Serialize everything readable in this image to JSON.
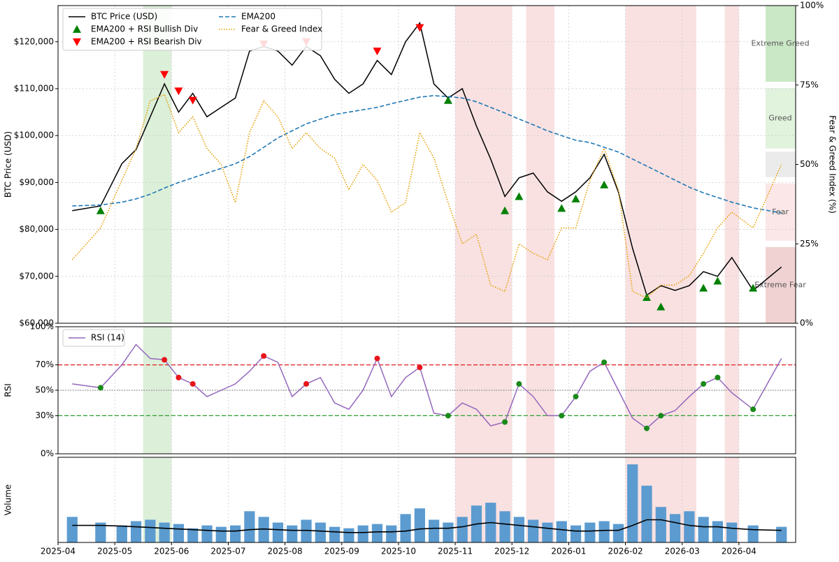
{
  "chart_data": [
    {
      "type": "line",
      "ylabel": "BTC Price (USD)",
      "y2label": "Fear & Greed Index (%)",
      "grid": true,
      "legend": "upper left",
      "ylim": [
        60000,
        127700
      ],
      "yticks": [
        {
          "value": 60000,
          "label": "$60,000"
        },
        {
          "value": 70000,
          "label": "$70,000"
        },
        {
          "value": 80000,
          "label": "$80,000"
        },
        {
          "value": 90000,
          "label": "$90,000"
        },
        {
          "value": 100000,
          "label": "$100,000"
        },
        {
          "value": 110000,
          "label": "$110,000"
        },
        {
          "value": 120000,
          "label": "$120,000"
        }
      ],
      "y2lim": [
        0,
        100
      ],
      "y2ticks": [
        {
          "value": 0,
          "label": "0%"
        },
        {
          "value": 25,
          "label": "25%"
        },
        {
          "value": 50,
          "label": "50%"
        },
        {
          "value": 75,
          "label": "75%"
        },
        {
          "value": 100,
          "label": "100%"
        }
      ],
      "series": [
        {
          "name": "BTC Price (USD)",
          "color": "#000000",
          "style": "solid",
          "values": [
            84000,
            85000,
            94000,
            97000,
            104000,
            111000,
            105000,
            109000,
            104000,
            106000,
            108000,
            118000,
            119000,
            118000,
            115000,
            119000,
            117000,
            112000,
            109000,
            111000,
            116000,
            113000,
            120000,
            124000,
            111000,
            108000,
            110000,
            102000,
            95000,
            87000,
            91000,
            92000,
            88000,
            86000,
            88000,
            91000,
            96000,
            88000,
            76000,
            66000,
            68000,
            67000,
            68000,
            71000,
            70000,
            74000,
            67000,
            72000
          ]
        },
        {
          "name": "EMA200 + RSI Bullish Div",
          "color": "#008000",
          "marker": "triangle-up",
          "values": [
            null,
            84000,
            null,
            null,
            null,
            null,
            null,
            null,
            null,
            null,
            null,
            null,
            null,
            null,
            null,
            null,
            null,
            null,
            null,
            null,
            null,
            null,
            null,
            null,
            null,
            107500,
            null,
            null,
            null,
            84000,
            87000,
            null,
            null,
            84500,
            86500,
            null,
            89500,
            null,
            null,
            65500,
            63500,
            null,
            null,
            67500,
            69000,
            null,
            67500,
            null
          ]
        },
        {
          "name": "EMA200 + RSI Bearish Div",
          "color": "#ff0000",
          "marker": "triangle-down",
          "values": [
            null,
            null,
            null,
            null,
            null,
            113000,
            109500,
            107500,
            null,
            null,
            null,
            null,
            119500,
            null,
            null,
            120000,
            null,
            null,
            null,
            null,
            118000,
            null,
            null,
            123000,
            null,
            null,
            null,
            null,
            null,
            null,
            null,
            null,
            null,
            null,
            null,
            null,
            null,
            null,
            null,
            null,
            null,
            null,
            null,
            null,
            null,
            null,
            null,
            null
          ]
        },
        {
          "name": "EMA200",
          "color": "#1f77b4",
          "style": "dashed",
          "values": [
            85000,
            85200,
            85800,
            86500,
            87500,
            88800,
            90000,
            91000,
            92000,
            93000,
            94000,
            95500,
            97500,
            99500,
            101000,
            102500,
            103500,
            104500,
            105000,
            105500,
            106000,
            106800,
            107500,
            108200,
            108500,
            108300,
            108000,
            107200,
            106000,
            104800,
            103500,
            102300,
            101000,
            100000,
            99000,
            98500,
            97500,
            96500,
            95000,
            93500,
            92000,
            90500,
            89000,
            87800,
            86800,
            85800,
            84600,
            83500
          ]
        },
        {
          "name": "Fear & Greed Index",
          "color": "#e69f00",
          "style": "dotted",
          "axis": "y2",
          "values": [
            20,
            30,
            45,
            55,
            70,
            72,
            60,
            65,
            55,
            50,
            38,
            60,
            70,
            65,
            55,
            60,
            55,
            52,
            42,
            50,
            45,
            35,
            38,
            60,
            52,
            38,
            25,
            28,
            12,
            10,
            25,
            22,
            20,
            30,
            30,
            45,
            55,
            42,
            10,
            8,
            12,
            12,
            15,
            22,
            30,
            35,
            30,
            50
          ]
        }
      ],
      "zones": [
        {
          "label": "Extreme Fear",
          "range": [
            0,
            24
          ],
          "color": "#e8b4b4"
        },
        {
          "label": "Fear",
          "range": [
            26,
            44
          ],
          "color": "#f8d7d7"
        },
        {
          "label": null,
          "range": [
            46,
            54
          ],
          "color": "#dddddd"
        },
        {
          "label": "Greed",
          "range": [
            55,
            74
          ],
          "color": "#cdeac6"
        },
        {
          "label": "Extreme Greed",
          "range": [
            76,
            100
          ],
          "color": "#a8d8a0"
        }
      ],
      "shaded": [
        {
          "from": 4,
          "to": 4,
          "color": "#b9dfb3"
        },
        {
          "from": 5,
          "to": 5,
          "color": "#b9dfb3"
        },
        {
          "from": 26,
          "to": 26,
          "color": "#f3c4c4"
        },
        {
          "from": 27,
          "to": 29,
          "color": "#f3c4c4"
        },
        {
          "from": 31,
          "to": 31,
          "color": "#f3c4c4"
        },
        {
          "from": 32,
          "to": 32,
          "color": "#f3c4c4"
        },
        {
          "from": 38,
          "to": 42,
          "color": "#f3c4c4"
        },
        {
          "from": 45,
          "to": 45,
          "color": "#f3c4c4"
        }
      ]
    },
    {
      "type": "line",
      "ylabel": "RSI",
      "grid": true,
      "legend": "upper left",
      "ylim": [
        0,
        100
      ],
      "yticks": [
        {
          "value": 0,
          "label": "0%"
        },
        {
          "value": 30,
          "label": "30%"
        },
        {
          "value": 50,
          "label": "50%"
        },
        {
          "value": 70,
          "label": "70%"
        },
        {
          "value": 100,
          "label": "100%"
        }
      ],
      "hlines": [
        {
          "value": 70,
          "color": "#e41a1c",
          "style": "dashed"
        },
        {
          "value": 50,
          "color": "#888888",
          "style": "dotted"
        },
        {
          "value": 30,
          "color": "#2ca02c",
          "style": "dashed"
        }
      ],
      "series": [
        {
          "name": "RSI (14)",
          "color": "#9467bd",
          "style": "solid",
          "values": [
            55,
            52,
            70,
            86,
            75,
            74,
            60,
            55,
            45,
            50,
            55,
            65,
            77,
            72,
            45,
            55,
            60,
            40,
            35,
            50,
            75,
            45,
            60,
            68,
            32,
            30,
            40,
            35,
            22,
            25,
            55,
            45,
            30,
            30,
            45,
            65,
            72,
            50,
            28,
            20,
            30,
            34,
            45,
            55,
            60,
            48,
            35,
            75
          ]
        },
        {
          "color": "#1a8a1a",
          "marker": "circle",
          "values": [
            null,
            52,
            null,
            null,
            null,
            null,
            null,
            null,
            null,
            null,
            null,
            null,
            null,
            null,
            null,
            null,
            null,
            null,
            null,
            null,
            null,
            null,
            null,
            null,
            null,
            30,
            null,
            null,
            null,
            25,
            55,
            null,
            null,
            30,
            45,
            null,
            72,
            null,
            null,
            20,
            30,
            null,
            null,
            55,
            60,
            null,
            35,
            null
          ]
        },
        {
          "color": "#e8141c",
          "marker": "circle",
          "values": [
            null,
            null,
            null,
            null,
            null,
            74,
            60,
            55,
            null,
            null,
            null,
            null,
            77,
            null,
            null,
            55,
            null,
            null,
            null,
            null,
            75,
            null,
            null,
            68,
            null,
            null,
            null,
            null,
            null,
            null,
            null,
            null,
            null,
            null,
            null,
            null,
            null,
            null,
            null,
            null,
            null,
            null,
            null,
            null,
            null,
            null,
            null,
            null
          ]
        }
      ]
    },
    {
      "type": "bar",
      "ylabel": "Volume",
      "ylim": [
        0,
        60
      ],
      "x": [
        "2025-04",
        "2025-04",
        "2025-05",
        "2025-05",
        "2025-05",
        "2025-05",
        "2025-06",
        "2025-06",
        "2025-06",
        "2025-06",
        "2025-07",
        "2025-07",
        "2025-07",
        "2025-07",
        "2025-08",
        "2025-08",
        "2025-08",
        "2025-08",
        "2025-09",
        "2025-09",
        "2025-09",
        "2025-09",
        "2025-10",
        "2025-10",
        "2025-10",
        "2025-10",
        "2025-11",
        "2025-11",
        "2025-11",
        "2025-11",
        "2025-12",
        "2025-12",
        "2025-12",
        "2025-12",
        "2026-01",
        "2026-01",
        "2026-01",
        "2026-01",
        "2026-02",
        "2026-02",
        "2026-02",
        "2026-02",
        "2026-03",
        "2026-03",
        "2026-03",
        "2026-03",
        "2026-04",
        "2026-04"
      ],
      "xlim": [
        "2025-04",
        "2026-05"
      ],
      "xticks": [
        "2025-04",
        "2025-05",
        "2025-06",
        "2025-07",
        "2025-08",
        "2025-09",
        "2025-10",
        "2025-11",
        "2025-12",
        "2026-01",
        "2026-02",
        "2026-03",
        "2026-04"
      ],
      "series": [
        {
          "color": "#5b9bd0",
          "values": [
            18,
            14,
            12,
            15,
            16,
            14,
            13,
            10,
            12,
            11,
            12,
            22,
            18,
            14,
            12,
            16,
            14,
            11,
            10,
            12,
            13,
            12,
            20,
            24,
            16,
            14,
            18,
            26,
            28,
            22,
            18,
            16,
            14,
            15,
            12,
            14,
            15,
            13,
            55,
            40,
            25,
            20,
            22,
            18,
            15,
            14,
            12,
            11
          ]
        },
        {
          "color": "#000000",
          "style": "solid",
          "values": [
            12,
            12,
            11.5,
            11,
            10.5,
            10,
            9.5,
            9,
            8.5,
            8,
            8,
            9,
            9.5,
            9,
            8.5,
            8.5,
            8,
            7.5,
            7,
            7,
            7.5,
            7.5,
            8,
            9.5,
            10,
            10,
            11,
            13,
            14,
            13,
            12,
            11,
            10,
            9,
            8,
            8,
            8.5,
            8.5,
            12,
            16,
            16,
            14,
            12,
            11,
            11,
            10,
            9,
            8.5
          ]
        }
      ]
    }
  ]
}
